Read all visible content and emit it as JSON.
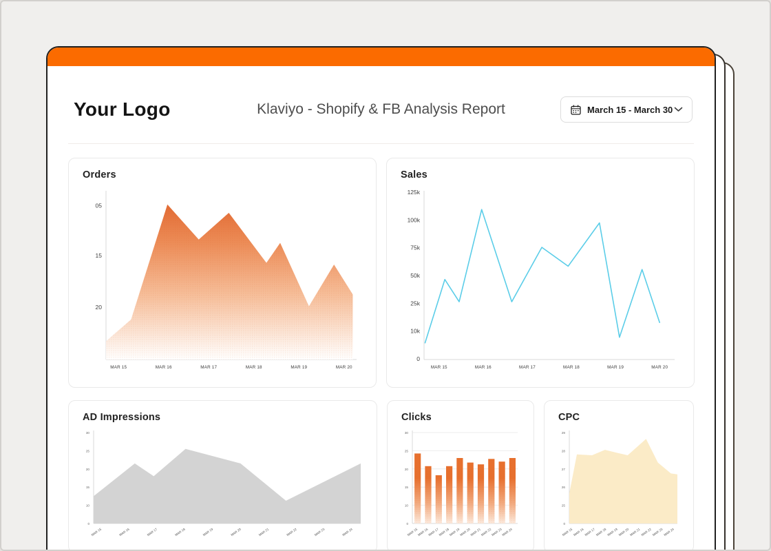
{
  "header": {
    "logo": "Your Logo",
    "title": "Klaviyo - Shopify & FB Analysis Report",
    "date_range": {
      "label": "March 15 - March 30"
    }
  },
  "colors": {
    "accent_orange": "#fb6b00",
    "orders_area": "#df6129",
    "sales_line": "#5bcde8",
    "impressions_area": "#d3d3d3",
    "clicks_bar": "#e7702e",
    "cpc_area": "#fbebc7",
    "page_border": "#1f1f1f"
  },
  "chart_data": [
    {
      "id": "orders",
      "type": "area",
      "title": "Orders",
      "y_tick_labels": [
        "05",
        "15",
        "20"
      ],
      "y_tick_pos": [
        0.08,
        0.38,
        0.69
      ],
      "x_tick_labels": [
        "MAR 15",
        "MAR 16",
        "MAR 17",
        "MAR 18",
        "MAR 19",
        "MAR 20"
      ],
      "x_tick_span": [
        0.05,
        0.95
      ],
      "ylim": [
        0,
        100
      ],
      "points": [
        [
          0.0,
          11
        ],
        [
          0.1,
          24
        ],
        [
          0.245,
          93
        ],
        [
          0.37,
          72
        ],
        [
          0.49,
          88
        ],
        [
          0.64,
          58
        ],
        [
          0.695,
          70
        ],
        [
          0.81,
          32
        ],
        [
          0.91,
          57
        ],
        [
          0.985,
          39
        ]
      ],
      "fill_gradient": "orders",
      "dots": true,
      "grid": false,
      "legend": "none"
    },
    {
      "id": "sales",
      "type": "line",
      "title": "Sales",
      "y_tick_labels": [
        "125k",
        "100k",
        "75k",
        "50k",
        "25k",
        "10k",
        "0"
      ],
      "y_scale_ticks": [
        0,
        10,
        25,
        50,
        75,
        100,
        125
      ],
      "x_tick_labels": [
        "MAR 15",
        "MAR 16",
        "MAR 17",
        "MAR 18",
        "MAR 19",
        "MAR 20"
      ],
      "x_tick_span": [
        0.06,
        0.94
      ],
      "ylim": [
        0,
        125
      ],
      "unit": "k",
      "points": [
        [
          0.004,
          6
        ],
        [
          0.083,
          47
        ],
        [
          0.14,
          27
        ],
        [
          0.23,
          110
        ],
        [
          0.35,
          27
        ],
        [
          0.47,
          76
        ],
        [
          0.575,
          59
        ],
        [
          0.7,
          98
        ],
        [
          0.78,
          8
        ],
        [
          0.87,
          56
        ],
        [
          0.94,
          15
        ]
      ],
      "stroke": "#5bcde8",
      "grid": false,
      "legend": "none"
    },
    {
      "id": "ad_impressions",
      "type": "area",
      "title": "AD Impressions",
      "compact": true,
      "rotate_x_labels": true,
      "y_tick_labels": [
        "30",
        "25",
        "20",
        "15",
        "10",
        "0"
      ],
      "x_tick_labels": [
        "MAR 15",
        "MAR 16",
        "MAR 17",
        "MAR 18",
        "MAR 19",
        "MAR 20",
        "MAR 21",
        "MAR 22",
        "MAR 23",
        "MAR 24"
      ],
      "x_tick_span": [
        0.03,
        0.97
      ],
      "ylim": [
        0,
        100
      ],
      "points": [
        [
          0,
          30
        ],
        [
          0.154,
          66
        ],
        [
          0.225,
          52
        ],
        [
          0.344,
          82
        ],
        [
          0.55,
          66
        ],
        [
          0.72,
          25
        ],
        [
          1.0,
          66
        ]
      ],
      "fill": "#d3d3d3",
      "grid": false,
      "legend": "none"
    },
    {
      "id": "clicks",
      "type": "bar",
      "title": "Clicks",
      "compact": true,
      "rotate_x_labels": true,
      "y_tick_labels": [
        "30",
        "25",
        "20",
        "15",
        "10",
        "0"
      ],
      "categories": [
        "MAR 15",
        "MAR 16",
        "MAR 17",
        "MAR 18",
        "MAR 19",
        "MAR 20",
        "MAR 21",
        "MAR 22",
        "MAR 23",
        "MAR 24"
      ],
      "ylim": [
        0,
        100
      ],
      "values": [
        77,
        63,
        53,
        63,
        72,
        67,
        65,
        71,
        68,
        72
      ],
      "fill_gradient": "bar",
      "dots": true,
      "grid": true,
      "legend": "none"
    },
    {
      "id": "cpc",
      "type": "area",
      "title": "CPC",
      "compact": true,
      "rotate_x_labels": true,
      "y_tick_labels": [
        "29",
        "28",
        "27",
        "26",
        "25",
        "0"
      ],
      "x_tick_labels": [
        "MAR 15",
        "MAR 16",
        "MAR 17",
        "MAR 18",
        "MAR 19",
        "MAR 20",
        "MAR 21",
        "MAR 22",
        "MAR 23",
        "MAR 24"
      ],
      "x_tick_span": [
        0.03,
        0.97
      ],
      "ylim": [
        0,
        100
      ],
      "points": [
        [
          0,
          33
        ],
        [
          0.07,
          76
        ],
        [
          0.21,
          75
        ],
        [
          0.33,
          81
        ],
        [
          0.43,
          78
        ],
        [
          0.54,
          75
        ],
        [
          0.71,
          93
        ],
        [
          0.82,
          67
        ],
        [
          0.94,
          55
        ],
        [
          1.0,
          54
        ]
      ],
      "fill": "#fbebc7",
      "grid": false,
      "legend": "none"
    }
  ]
}
